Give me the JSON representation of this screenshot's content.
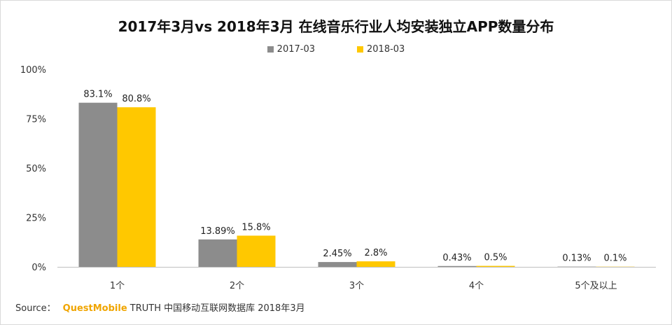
{
  "chart_data": {
    "type": "bar",
    "title": "2017年3月vs 2018年3月 在线音乐行业人均安装独立APP数量分布",
    "categories": [
      "1个",
      "2个",
      "3个",
      "4个",
      "5个及以上"
    ],
    "series": [
      {
        "name": "2017-03",
        "color": "#8c8c8c",
        "values": [
          83.1,
          13.89,
          2.45,
          0.43,
          0.13
        ],
        "labels": [
          "83.1%",
          "13.89%",
          "2.45%",
          "0.43%",
          "0.13%"
        ]
      },
      {
        "name": "2018-03",
        "color": "#ffc800",
        "values": [
          80.8,
          15.8,
          2.8,
          0.5,
          0.1
        ],
        "labels": [
          "80.8%",
          "15.8%",
          "2.8%",
          "0.5%",
          "0.1%"
        ]
      }
    ],
    "yticks": [
      "0%",
      "25%",
      "50%",
      "75%",
      "100%"
    ],
    "ylim": [
      0,
      100
    ],
    "legend_position": "top"
  },
  "source": {
    "prefix": "Source：",
    "brand": "QuestMobile",
    "text": " TRUTH 中国移动互联网数据库 2018年3月"
  }
}
